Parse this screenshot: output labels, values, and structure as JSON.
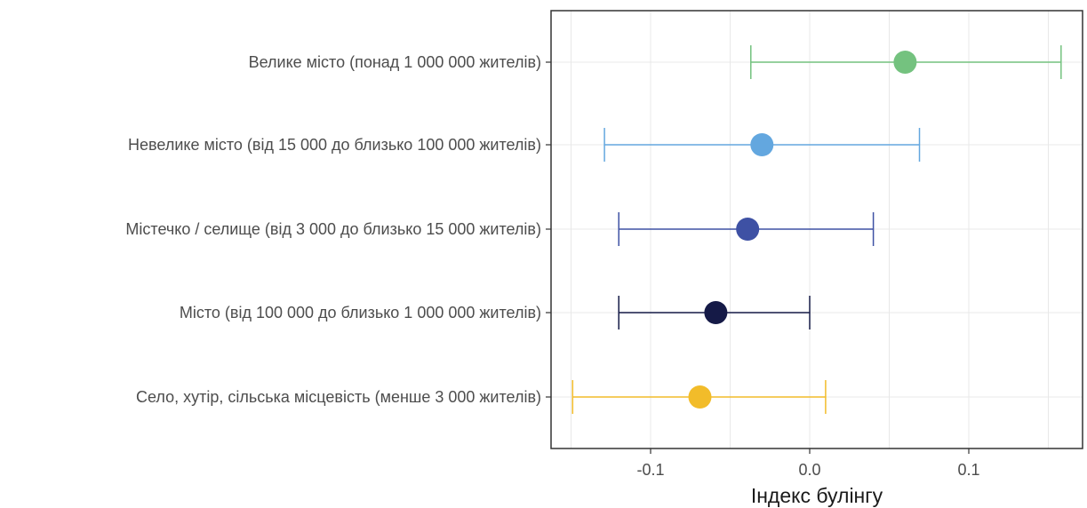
{
  "chart_data": {
    "type": "scatter",
    "subtype": "point-with-error-bars",
    "xlabel": "Індекс булінгу",
    "ylabel": "",
    "xlim": [
      -0.165,
      0.165
    ],
    "xticks": [
      -0.1,
      0.0,
      0.1
    ],
    "xtick_labels": [
      "-0.1",
      "0.0",
      "0.1"
    ],
    "grid": true,
    "legend": "none",
    "categories": [
      "Велике місто (понад 1 000 000 жителів)",
      "Невелике місто (від 15 000 до близько 100 000 жителів)",
      "Містечко / селище (від 3 000 до близько 15 000 жителів)",
      "Місто (від 100 000 до близько 1 000 000 жителів)",
      "Село, хутір, сільська місцевість (менше 3 000 жителів)"
    ],
    "points": [
      {
        "category": "Велике місто (понад 1 000 000 жителів)",
        "estimate": 0.06,
        "lower": -0.037,
        "upper": 0.158,
        "color": "#74c27f"
      },
      {
        "category": "Невелике місто (від 15 000 до близько 100 000 жителів)",
        "estimate": -0.03,
        "lower": -0.129,
        "upper": 0.069,
        "color": "#63a7df"
      },
      {
        "category": "Містечко / селище (від 3 000 до близько 15 000 жителів)",
        "estimate": -0.039,
        "lower": -0.12,
        "upper": 0.04,
        "color": "#3e51a4"
      },
      {
        "category": "Місто (від 100 000 до близько 1 000 000 жителів)",
        "estimate": -0.059,
        "lower": -0.12,
        "upper": 0.0,
        "color": "#151a47"
      },
      {
        "category": "Село, хутір, сільська місцевість (менше 3 000 жителів)",
        "estimate": -0.069,
        "lower": -0.149,
        "upper": 0.01,
        "color": "#f2bc2a"
      }
    ]
  }
}
